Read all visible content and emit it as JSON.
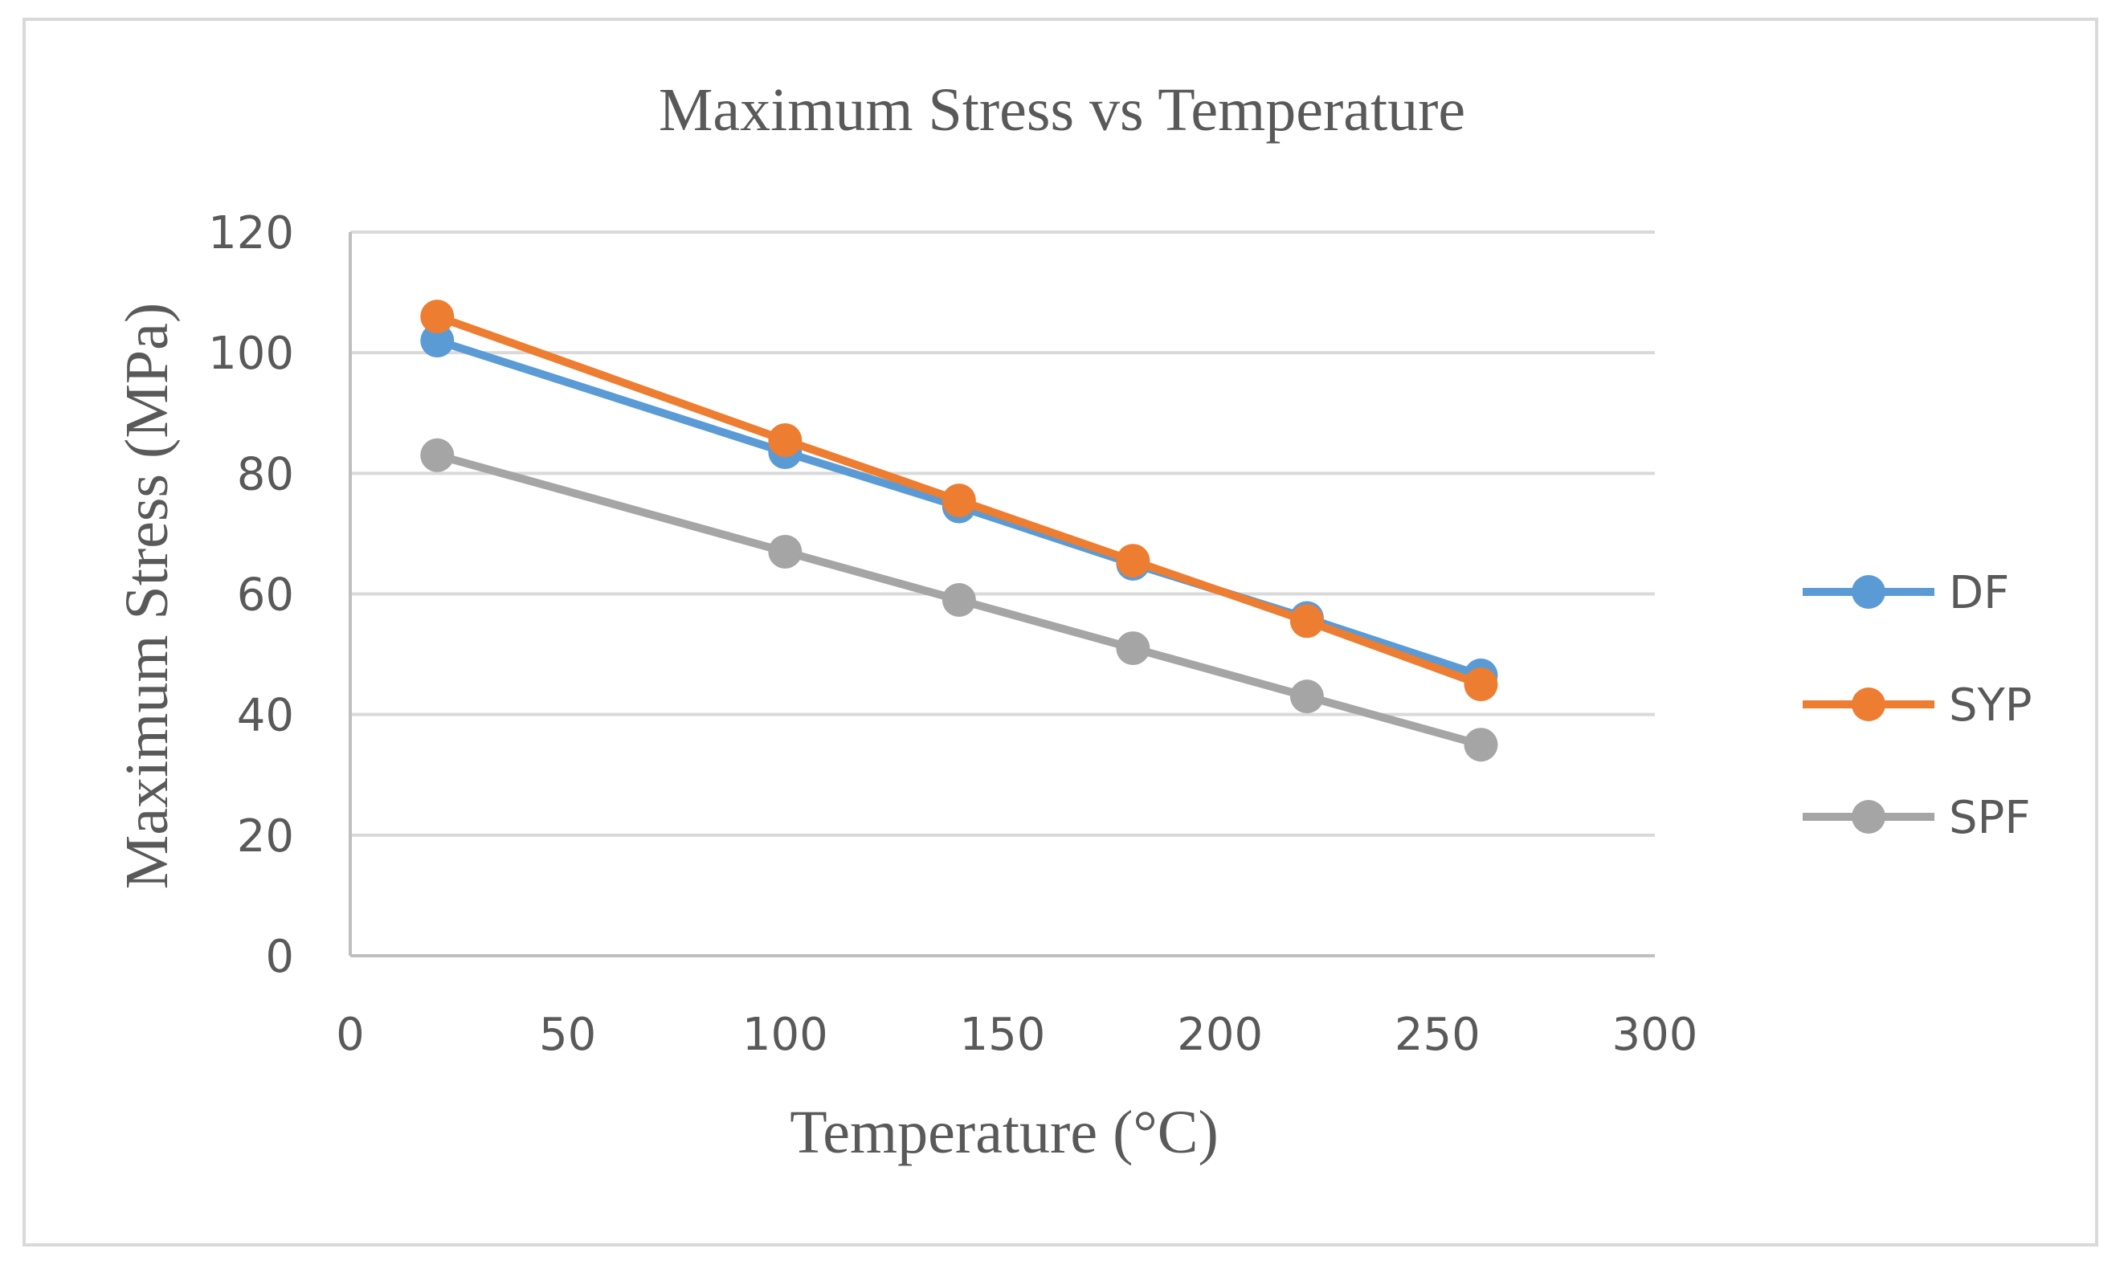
{
  "chart_data": {
    "type": "line",
    "title": "Maximum Stress vs Temperature",
    "xlabel": "Temperature (°C)",
    "ylabel": "Maximum Stress (MPa)",
    "xlim": [
      0,
      300
    ],
    "ylim": [
      0,
      120
    ],
    "x_ticks": [
      "0",
      "50",
      "100",
      "150",
      "200",
      "250",
      "300"
    ],
    "y_ticks": [
      "0",
      "20",
      "40",
      "60",
      "80",
      "100",
      "120"
    ],
    "x_tick_values": [
      0,
      50,
      100,
      150,
      200,
      250,
      300
    ],
    "y_tick_values": [
      0,
      20,
      40,
      60,
      80,
      100,
      120
    ],
    "grid": "horizontal",
    "legend_position": "right",
    "x": [
      20,
      100,
      140,
      180,
      220,
      260
    ],
    "series": [
      {
        "name": "DF",
        "color": "#5b9bd5",
        "values": [
          102,
          83.5,
          74.5,
          65,
          56,
          46.5
        ]
      },
      {
        "name": "SYP",
        "color": "#ed7d31",
        "values": [
          106,
          85.5,
          75.5,
          65.5,
          55.5,
          45
        ]
      },
      {
        "name": "SPF",
        "color": "#a5a5a5",
        "values": [
          83,
          67,
          59,
          51,
          43,
          35
        ]
      }
    ]
  }
}
